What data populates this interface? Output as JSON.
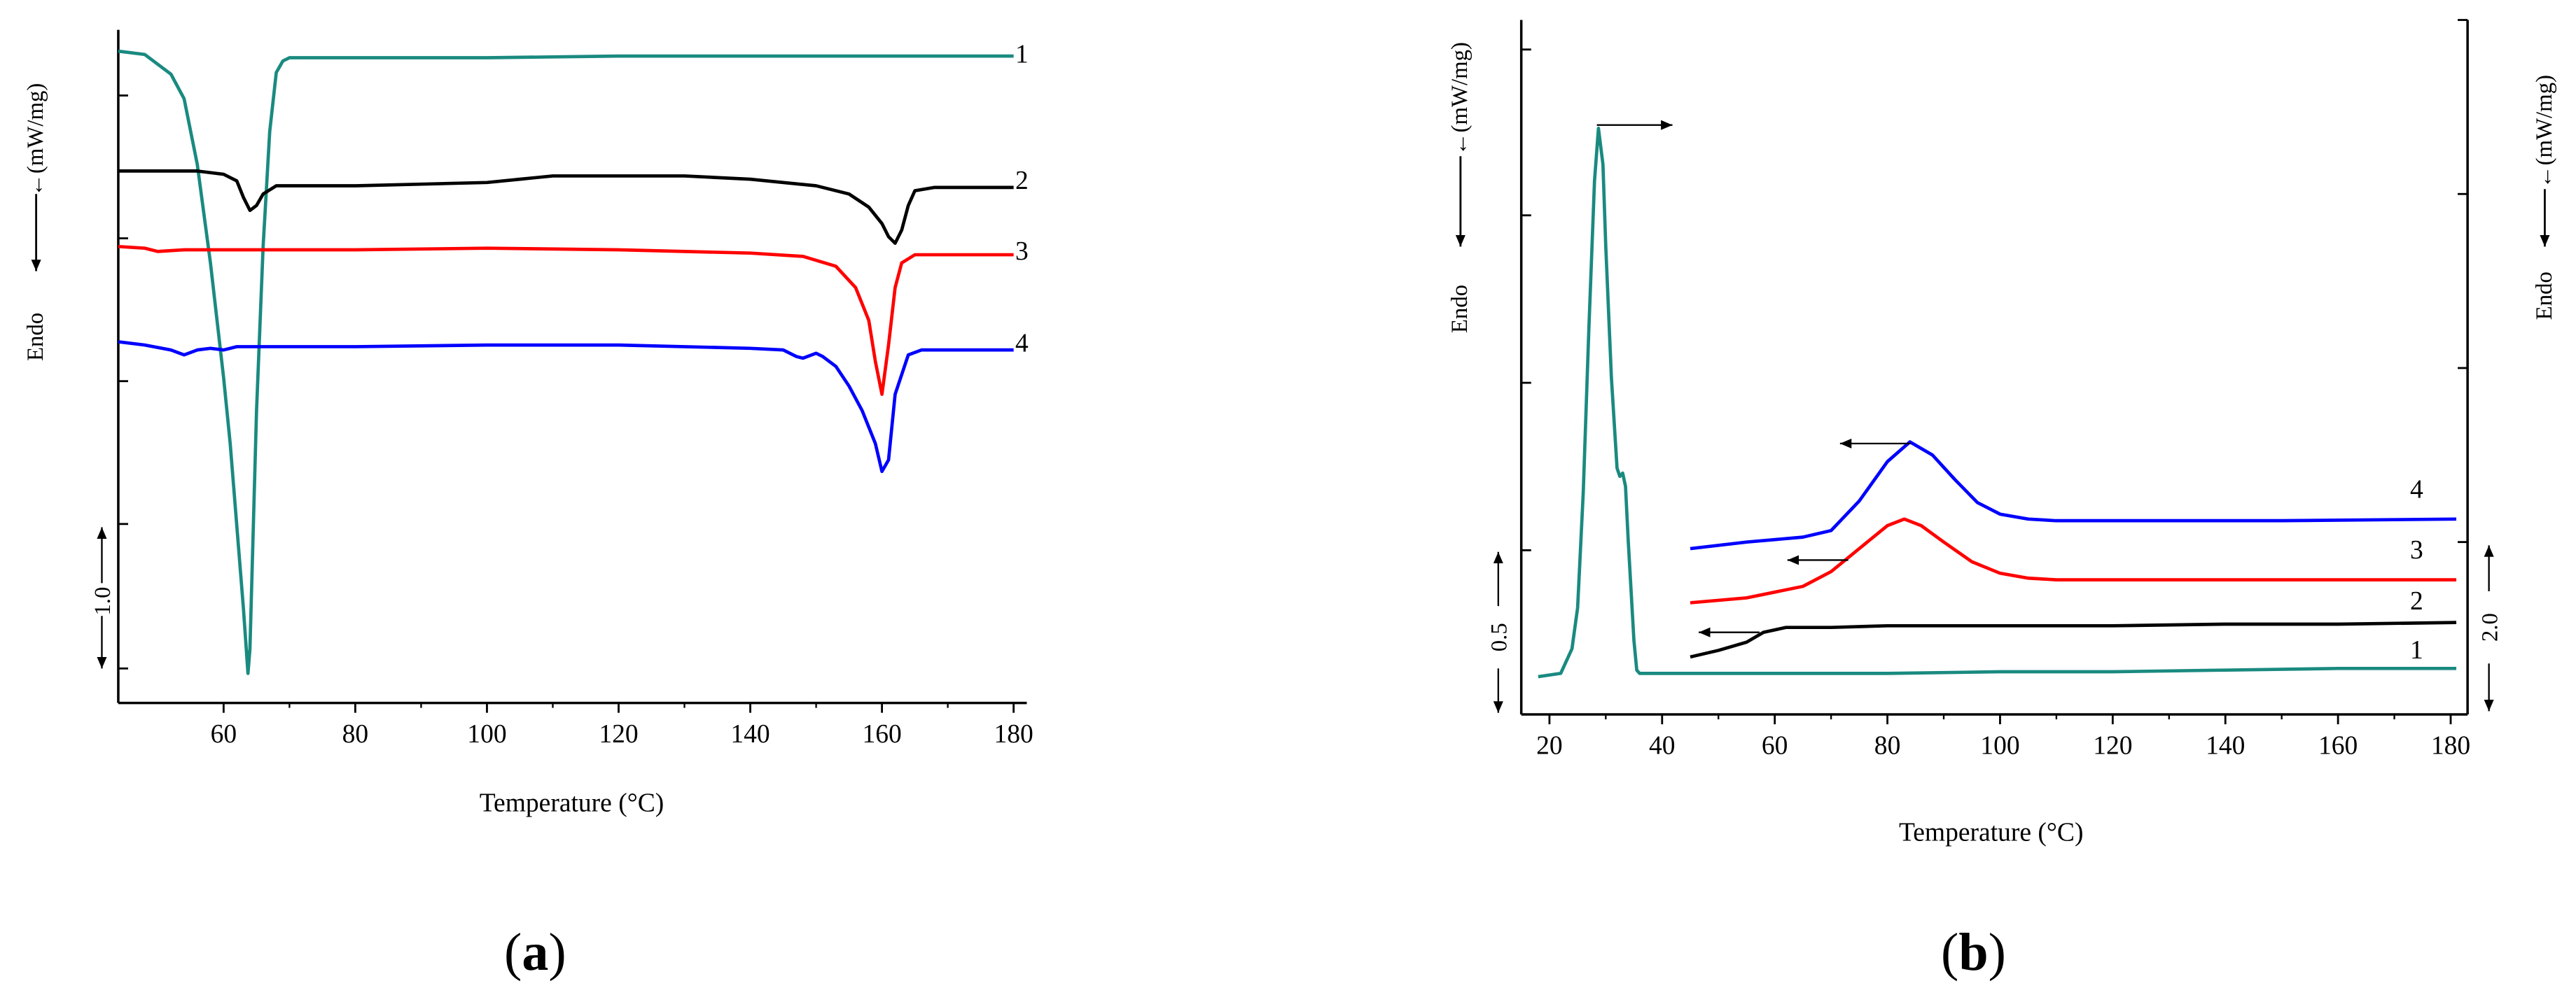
{
  "chart_data": [
    {
      "type": "line",
      "panel_label": "a",
      "xlabel": "Temperature (°C)",
      "ylabel": "←(mW/mg)",
      "endo_label": "Endo",
      "scale_bar_label": "1.0",
      "xlim": [
        44,
        182
      ],
      "x_ticks": [
        60,
        80,
        100,
        120,
        140,
        160,
        180
      ],
      "series": [
        {
          "name": "1",
          "color": "#1a8a80",
          "points": [
            [
              44,
              31
            ],
            [
              48,
              33
            ],
            [
              52,
              45
            ],
            [
              54,
              60
            ],
            [
              56,
              100
            ],
            [
              58,
              160
            ],
            [
              60,
              230
            ],
            [
              61,
              270
            ],
            [
              62,
              320
            ],
            [
              63,
              370
            ],
            [
              63.7,
              410
            ],
            [
              64,
              395
            ],
            [
              65,
              250
            ],
            [
              66,
              150
            ],
            [
              67,
              80
            ],
            [
              68,
              44
            ],
            [
              69,
              37
            ],
            [
              70,
              35
            ],
            [
              80,
              35
            ],
            [
              100,
              35
            ],
            [
              120,
              34
            ],
            [
              140,
              34
            ],
            [
              160,
              34
            ],
            [
              180,
              34
            ]
          ]
        },
        {
          "name": "2",
          "color": "#000000",
          "points": [
            [
              44,
              104
            ],
            [
              50,
              104
            ],
            [
              56,
              104
            ],
            [
              60,
              106
            ],
            [
              62,
              110
            ],
            [
              63,
              120
            ],
            [
              64,
              128
            ],
            [
              65,
              125
            ],
            [
              66,
              118
            ],
            [
              68,
              113
            ],
            [
              80,
              113
            ],
            [
              90,
              112
            ],
            [
              100,
              111
            ],
            [
              105,
              109
            ],
            [
              110,
              107
            ],
            [
              120,
              107
            ],
            [
              130,
              107
            ],
            [
              140,
              109
            ],
            [
              150,
              113
            ],
            [
              155,
              118
            ],
            [
              158,
              126
            ],
            [
              160,
              136
            ],
            [
              161,
              144
            ],
            [
              162,
              148
            ],
            [
              163,
              140
            ],
            [
              164,
              125
            ],
            [
              165,
              116
            ],
            [
              168,
              114
            ],
            [
              175,
              114
            ],
            [
              180,
              114
            ]
          ]
        },
        {
          "name": "3",
          "color": "#ff0000",
          "points": [
            [
              44,
              150
            ],
            [
              48,
              151
            ],
            [
              50,
              153
            ],
            [
              54,
              152
            ],
            [
              60,
              152
            ],
            [
              80,
              152
            ],
            [
              100,
              151
            ],
            [
              120,
              152
            ],
            [
              140,
              154
            ],
            [
              148,
              156
            ],
            [
              153,
              162
            ],
            [
              156,
              175
            ],
            [
              158,
              195
            ],
            [
              159,
              220
            ],
            [
              160,
              240
            ],
            [
              161,
              210
            ],
            [
              162,
              175
            ],
            [
              163,
              160
            ],
            [
              165,
              155
            ],
            [
              170,
              155
            ],
            [
              180,
              155
            ]
          ]
        },
        {
          "name": "4",
          "color": "#0000ff",
          "points": [
            [
              44,
              208
            ],
            [
              48,
              210
            ],
            [
              52,
              213
            ],
            [
              54,
              216
            ],
            [
              56,
              213
            ],
            [
              58,
              212
            ],
            [
              60,
              213
            ],
            [
              62,
              211
            ],
            [
              66,
              211
            ],
            [
              80,
              211
            ],
            [
              100,
              210
            ],
            [
              120,
              210
            ],
            [
              140,
              212
            ],
            [
              145,
              213
            ],
            [
              147,
              217
            ],
            [
              148,
              218
            ],
            [
              150,
              215
            ],
            [
              151,
              217
            ],
            [
              153,
              223
            ],
            [
              155,
              235
            ],
            [
              157,
              250
            ],
            [
              159,
              270
            ],
            [
              160,
              287
            ],
            [
              161,
              280
            ],
            [
              162,
              240
            ],
            [
              164,
              216
            ],
            [
              166,
              213
            ],
            [
              170,
              213
            ],
            [
              180,
              213
            ]
          ]
        }
      ]
    },
    {
      "type": "line",
      "panel_label": "b",
      "xlabel": "Temperature (°C)",
      "ylabel": "←(mW/mg)",
      "endo_label": "Endo",
      "right_ylabel": "←(mW/mg)",
      "right_endo_label": "Endo",
      "scale_bar_left_label": "0.5",
      "scale_bar_right_label": "2.0",
      "xlim": [
        15,
        183
      ],
      "x_ticks": [
        20,
        40,
        60,
        80,
        100,
        120,
        140,
        160,
        180
      ],
      "series": [
        {
          "name": "1",
          "color": "#1a8a80",
          "points": [
            [
              18,
              412
            ],
            [
              22,
              410
            ],
            [
              24,
              395
            ],
            [
              25,
              370
            ],
            [
              26,
              300
            ],
            [
              27,
              200
            ],
            [
              28,
              110
            ],
            [
              28.7,
              78
            ],
            [
              29.5,
              100
            ],
            [
              30,
              150
            ],
            [
              31,
              230
            ],
            [
              32,
              285
            ],
            [
              32.5,
              290
            ],
            [
              33,
              288
            ],
            [
              33.5,
              296
            ],
            [
              34,
              330
            ],
            [
              35,
              390
            ],
            [
              35.5,
              408
            ],
            [
              36,
              410
            ],
            [
              50,
              410
            ],
            [
              80,
              410
            ],
            [
              100,
              409
            ],
            [
              120,
              409
            ],
            [
              140,
              408
            ],
            [
              160,
              407
            ],
            [
              181,
              407
            ]
          ]
        },
        {
          "name": "2",
          "color": "#000000",
          "points": [
            [
              45,
              400
            ],
            [
              50,
              396
            ],
            [
              55,
              391
            ],
            [
              58,
              385
            ],
            [
              62,
              382
            ],
            [
              70,
              382
            ],
            [
              80,
              381
            ],
            [
              100,
              381
            ],
            [
              120,
              381
            ],
            [
              140,
              380
            ],
            [
              160,
              380
            ],
            [
              181,
              379
            ]
          ]
        },
        {
          "name": "3",
          "color": "#ff0000",
          "points": [
            [
              45,
              367
            ],
            [
              55,
              364
            ],
            [
              65,
              357
            ],
            [
              70,
              348
            ],
            [
              75,
              334
            ],
            [
              80,
              320
            ],
            [
              83,
              316
            ],
            [
              86,
              320
            ],
            [
              90,
              330
            ],
            [
              95,
              342
            ],
            [
              100,
              349
            ],
            [
              105,
              352
            ],
            [
              110,
              353
            ],
            [
              130,
              353
            ],
            [
              150,
              353
            ],
            [
              181,
              353
            ]
          ]
        },
        {
          "name": "4",
          "color": "#0000ff",
          "points": [
            [
              45,
              334
            ],
            [
              55,
              330
            ],
            [
              65,
              327
            ],
            [
              70,
              323
            ],
            [
              75,
              305
            ],
            [
              80,
              281
            ],
            [
              84,
              269
            ],
            [
              88,
              277
            ],
            [
              92,
              292
            ],
            [
              96,
              306
            ],
            [
              100,
              313
            ],
            [
              105,
              316
            ],
            [
              110,
              317
            ],
            [
              130,
              317
            ],
            [
              150,
              317
            ],
            [
              181,
              316
            ]
          ]
        }
      ]
    }
  ],
  "captions": [
    "a",
    "b"
  ]
}
